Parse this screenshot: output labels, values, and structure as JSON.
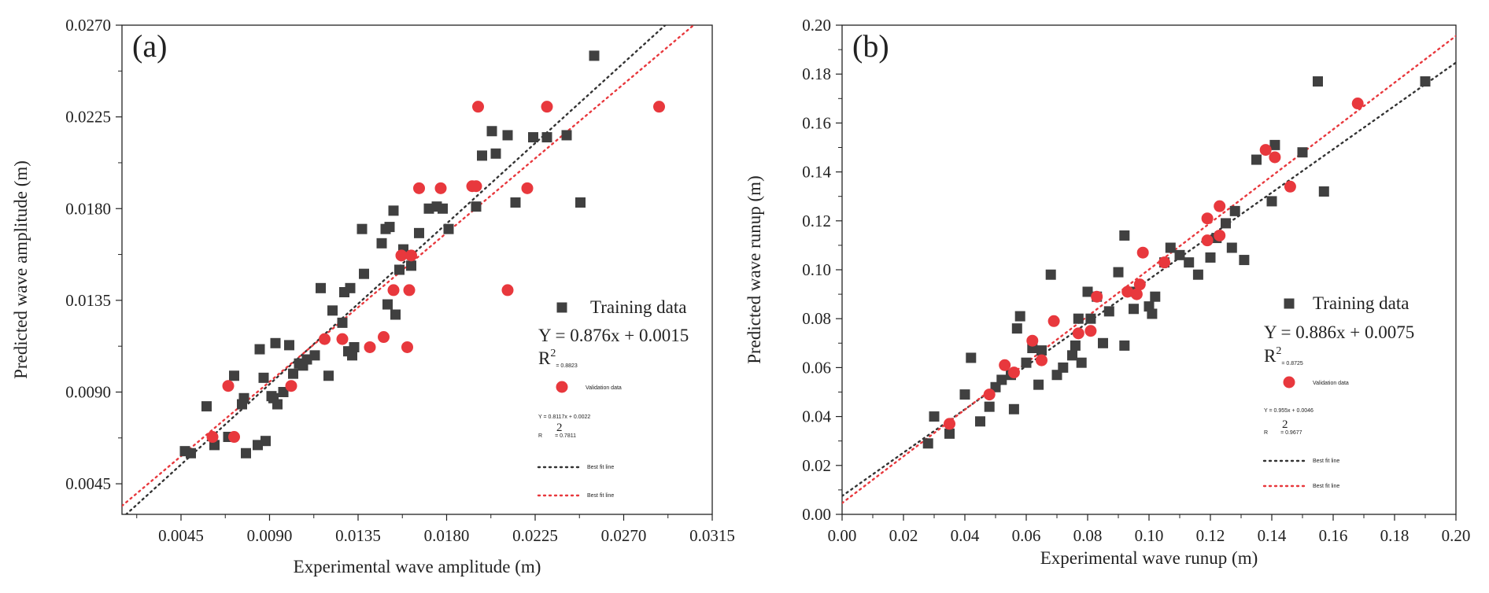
{
  "chart_data": [
    {
      "type": "scatter",
      "panel_label": "(a)",
      "xlabel": "Experimental wave amplitude (m)",
      "ylabel": "Predicted wave amplitude (m)",
      "xlim": [
        0.0015,
        0.0315
      ],
      "ylim": [
        0.003,
        0.027
      ],
      "xticks": [
        "0.0045",
        "0.0090",
        "0.0135",
        "0.0180",
        "0.0225",
        "0.0270",
        "0.0315"
      ],
      "yticks": [
        "0.0045",
        "0.0090",
        "0.0135",
        "0.0180",
        "0.0225",
        "0.0270"
      ],
      "legend": {
        "training_label": "Training data",
        "training_eq": "Y = 0.876x + 0.0015",
        "training_r2_base": "R",
        "training_r2_sup": "2",
        "training_r2_val": "= 0.8823",
        "validation_label": "Validation data",
        "validation_eq": "Y = 0.8117x + 0.0022",
        "validation_r2_sup": "2",
        "validation_r2_base": "R",
        "validation_r2_val": "= 0.7811",
        "fit_label_1": "Best fit line",
        "fit_label_2": "Best fit line"
      },
      "series": [
        {
          "name": "Training data",
          "marker": "square",
          "color": "#404040",
          "x": [
            0.0047,
            0.005,
            0.0058,
            0.0062,
            0.0069,
            0.0072,
            0.0076,
            0.0077,
            0.0078,
            0.0084,
            0.0085,
            0.0087,
            0.0088,
            0.0091,
            0.0092,
            0.0093,
            0.0094,
            0.0097,
            0.01,
            0.0102,
            0.0105,
            0.0107,
            0.0109,
            0.0113,
            0.0116,
            0.012,
            0.0122,
            0.0127,
            0.0128,
            0.013,
            0.0131,
            0.0132,
            0.0133,
            0.0137,
            0.0138,
            0.0147,
            0.0149,
            0.015,
            0.0151,
            0.0153,
            0.0154,
            0.0156,
            0.0158,
            0.0162,
            0.0166,
            0.0171,
            0.0175,
            0.0178,
            0.0181,
            0.0195,
            0.0198,
            0.0203,
            0.0205,
            0.0211,
            0.0215,
            0.0224,
            0.0231,
            0.0241,
            0.0248,
            0.0255
          ],
          "y": [
            0.0061,
            0.006,
            0.0083,
            0.0064,
            0.0068,
            0.0098,
            0.0084,
            0.0087,
            0.006,
            0.0064,
            0.0111,
            0.0097,
            0.0066,
            0.0088,
            0.0087,
            0.0114,
            0.0084,
            0.009,
            0.0113,
            0.0099,
            0.0104,
            0.0103,
            0.0106,
            0.0108,
            0.0141,
            0.0098,
            0.013,
            0.0124,
            0.0139,
            0.011,
            0.0141,
            0.0108,
            0.0112,
            0.017,
            0.0148,
            0.0163,
            0.017,
            0.0133,
            0.0171,
            0.0179,
            0.0128,
            0.015,
            0.016,
            0.0152,
            0.0168,
            0.018,
            0.0181,
            0.018,
            0.017,
            0.0181,
            0.0206,
            0.0218,
            0.0207,
            0.0216,
            0.0183,
            0.0215,
            0.0215,
            0.0216,
            0.0183,
            0.0255
          ]
        },
        {
          "name": "Validation data",
          "marker": "circle",
          "color": "#e8383d",
          "x": [
            0.0061,
            0.0069,
            0.0072,
            0.0101,
            0.0118,
            0.0127,
            0.0141,
            0.0148,
            0.0153,
            0.0157,
            0.016,
            0.0161,
            0.0162,
            0.0166,
            0.0177,
            0.0193,
            0.0195,
            0.0196,
            0.0211,
            0.0221,
            0.0231,
            0.0288
          ],
          "y": [
            0.0068,
            0.0093,
            0.0068,
            0.0093,
            0.0116,
            0.0116,
            0.0112,
            0.0117,
            0.014,
            0.0157,
            0.0112,
            0.014,
            0.0157,
            0.019,
            0.019,
            0.0191,
            0.0191,
            0.023,
            0.014,
            0.019,
            0.023,
            0.023
          ]
        }
      ],
      "fit_lines": [
        {
          "name": "Best fit line (training)",
          "color": "#333333",
          "slope": 0.876,
          "intercept": 0.0015
        },
        {
          "name": "Best fit line (validation)",
          "color": "#e8383d",
          "slope": 0.8117,
          "intercept": 0.0022
        }
      ]
    },
    {
      "type": "scatter",
      "panel_label": "(b)",
      "xlabel": "Experimental wave runup (m)",
      "ylabel": "Predicted wave runup (m)",
      "xlim": [
        0.0,
        0.2
      ],
      "ylim": [
        0.0,
        0.2
      ],
      "xticks": [
        "0.00",
        "0.02",
        "0.04",
        "0.06",
        "0.08",
        "0.10",
        "0.12",
        "0.14",
        "0.16",
        "0.18",
        "0.20"
      ],
      "yticks": [
        "0.00",
        "0.02",
        "0.04",
        "0.06",
        "0.08",
        "0.10",
        "0.12",
        "0.14",
        "0.16",
        "0.18",
        "0.20"
      ],
      "legend": {
        "training_label": "Training data",
        "training_eq": "Y = 0.886x + 0.0075",
        "training_r2_base": "R",
        "training_r2_sup": "2",
        "training_r2_val": "= 0.8725",
        "validation_label": "Validation data",
        "validation_eq": "Y = 0.955x + 0.0046",
        "validation_r2_sup": "2",
        "validation_r2_base": "R",
        "validation_r2_val": "= 0.9677",
        "fit_label_1": "Best fit line",
        "fit_label_2": "Best fit line"
      },
      "series": [
        {
          "name": "Training data",
          "marker": "square",
          "color": "#404040",
          "x": [
            0.028,
            0.03,
            0.035,
            0.04,
            0.042,
            0.045,
            0.048,
            0.05,
            0.052,
            0.055,
            0.056,
            0.057,
            0.058,
            0.06,
            0.062,
            0.064,
            0.065,
            0.068,
            0.07,
            0.072,
            0.075,
            0.076,
            0.077,
            0.078,
            0.08,
            0.081,
            0.083,
            0.085,
            0.087,
            0.09,
            0.092,
            0.092,
            0.094,
            0.095,
            0.1,
            0.101,
            0.102,
            0.105,
            0.107,
            0.11,
            0.113,
            0.116,
            0.12,
            0.122,
            0.125,
            0.127,
            0.128,
            0.131,
            0.135,
            0.14,
            0.141,
            0.15,
            0.155,
            0.157,
            0.19
          ],
          "y": [
            0.029,
            0.04,
            0.033,
            0.049,
            0.064,
            0.038,
            0.044,
            0.052,
            0.055,
            0.057,
            0.043,
            0.076,
            0.081,
            0.062,
            0.068,
            0.053,
            0.067,
            0.098,
            0.057,
            0.06,
            0.065,
            0.069,
            0.08,
            0.062,
            0.091,
            0.08,
            0.089,
            0.07,
            0.083,
            0.099,
            0.069,
            0.114,
            0.091,
            0.084,
            0.085,
            0.082,
            0.089,
            0.103,
            0.109,
            0.106,
            0.103,
            0.098,
            0.105,
            0.113,
            0.119,
            0.109,
            0.124,
            0.104,
            0.145,
            0.128,
            0.151,
            0.148,
            0.177,
            0.132,
            0.177
          ]
        },
        {
          "name": "Validation data",
          "marker": "circle",
          "color": "#e8383d",
          "x": [
            0.035,
            0.048,
            0.053,
            0.056,
            0.062,
            0.065,
            0.069,
            0.077,
            0.081,
            0.083,
            0.093,
            0.096,
            0.097,
            0.098,
            0.105,
            0.119,
            0.119,
            0.123,
            0.123,
            0.138,
            0.141,
            0.146,
            0.168
          ],
          "y": [
            0.037,
            0.049,
            0.061,
            0.058,
            0.071,
            0.063,
            0.079,
            0.074,
            0.075,
            0.089,
            0.091,
            0.09,
            0.094,
            0.107,
            0.103,
            0.121,
            0.112,
            0.114,
            0.126,
            0.149,
            0.146,
            0.134,
            0.168
          ]
        }
      ],
      "fit_lines": [
        {
          "name": "Best fit line (training)",
          "color": "#333333",
          "slope": 0.886,
          "intercept": 0.0075
        },
        {
          "name": "Best fit line (validation)",
          "color": "#e8383d",
          "slope": 0.955,
          "intercept": 0.0046
        }
      ]
    }
  ]
}
